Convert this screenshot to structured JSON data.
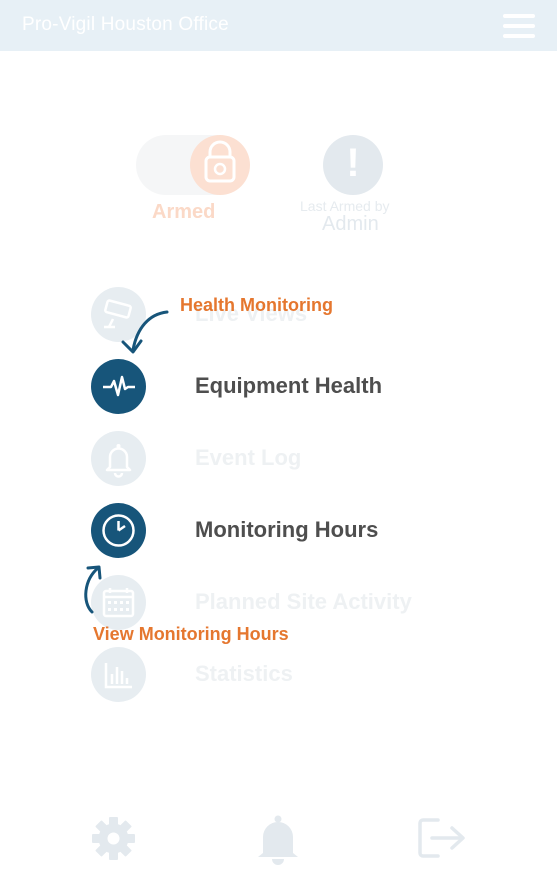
{
  "header": {
    "title": "Pro-Vigil Houston Office",
    "menu_icon": "hamburger-menu-icon"
  },
  "status": {
    "armed_label": "Armed",
    "last_armed_text": "Last Armed by",
    "last_armed_user": "Admin",
    "alert_symbol": "!"
  },
  "menu": {
    "items": [
      {
        "label": "Live Views",
        "icon": "camera-icon",
        "active": false
      },
      {
        "label": "Equipment Health",
        "icon": "heartbeat-icon",
        "active": true
      },
      {
        "label": "Event Log",
        "icon": "bell-icon",
        "active": false
      },
      {
        "label": "Monitoring Hours",
        "icon": "clock-icon",
        "active": true
      },
      {
        "label": "Planned Site Activity",
        "icon": "calendar-icon",
        "active": false
      },
      {
        "label": "Statistics",
        "icon": "bar-chart-icon",
        "active": false
      }
    ]
  },
  "annotations": {
    "health": "Health Monitoring",
    "hours": "View Monitoring Hours"
  },
  "footer": {
    "icons": [
      "settings-gear-icon",
      "notification-bell-icon",
      "logout-icon"
    ]
  },
  "colors": {
    "header_bg": "#e7f0f6",
    "active_icon_bg": "#17557a",
    "annotation": "#e5772f",
    "armed_accent": "#fce0d2"
  }
}
